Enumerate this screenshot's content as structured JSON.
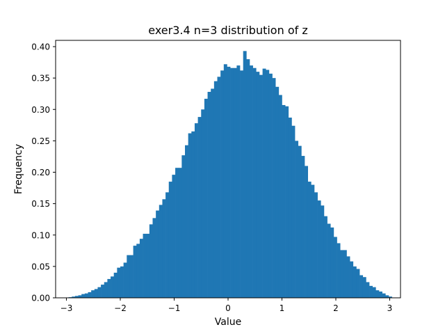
{
  "chart_data": {
    "type": "bar",
    "title": "exer3.4 n=3 distribution of z",
    "xlabel": "Value",
    "ylabel": "Frequency",
    "xlim": [
      -3.2,
      3.2
    ],
    "ylim": [
      0,
      0.41
    ],
    "xticks": [
      -3,
      -2,
      -1,
      0,
      1,
      2,
      3
    ],
    "xtick_labels": [
      "−3",
      "−2",
      "−1",
      "0",
      "1",
      "2",
      "3"
    ],
    "yticks": [
      0,
      0.05,
      0.1,
      0.15,
      0.2,
      0.25,
      0.3,
      0.35,
      0.4
    ],
    "ytick_labels": [
      "0.00",
      "0.05",
      "0.10",
      "0.15",
      "0.20",
      "0.25",
      "0.30",
      "0.35",
      "0.40"
    ],
    "grid": false,
    "legend": "none",
    "bar_color": "#1f77b4",
    "bins": {
      "start": -2.96,
      "width": 0.06,
      "values": [
        0.001,
        0.002,
        0.003,
        0.004,
        0.006,
        0.007,
        0.009,
        0.012,
        0.014,
        0.017,
        0.021,
        0.025,
        0.03,
        0.034,
        0.04,
        0.048,
        0.05,
        0.056,
        0.068,
        0.068,
        0.083,
        0.086,
        0.094,
        0.102,
        0.102,
        0.117,
        0.127,
        0.139,
        0.148,
        0.157,
        0.168,
        0.185,
        0.196,
        0.207,
        0.207,
        0.227,
        0.243,
        0.262,
        0.265,
        0.278,
        0.288,
        0.3,
        0.317,
        0.328,
        0.333,
        0.345,
        0.352,
        0.362,
        0.372,
        0.368,
        0.366,
        0.366,
        0.37,
        0.362,
        0.393,
        0.38,
        0.37,
        0.366,
        0.36,
        0.355,
        0.365,
        0.363,
        0.357,
        0.35,
        0.336,
        0.323,
        0.307,
        0.305,
        0.287,
        0.274,
        0.25,
        0.242,
        0.226,
        0.21,
        0.185,
        0.18,
        0.168,
        0.155,
        0.147,
        0.13,
        0.118,
        0.112,
        0.097,
        0.087,
        0.076,
        0.076,
        0.066,
        0.058,
        0.05,
        0.046,
        0.036,
        0.033,
        0.025,
        0.019,
        0.017,
        0.012,
        0.01,
        0.007,
        0.004,
        0.002
      ]
    }
  }
}
